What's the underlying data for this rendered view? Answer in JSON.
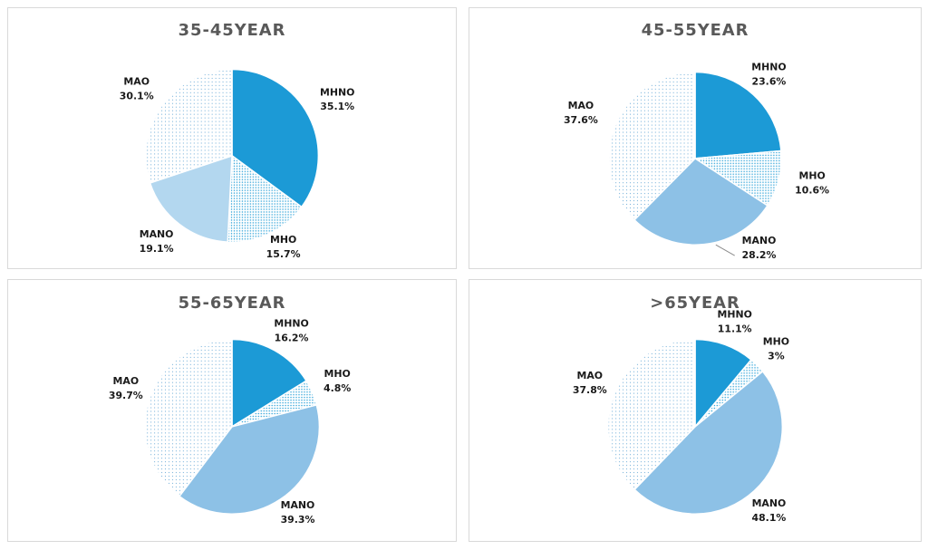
{
  "colors": {
    "MHNO": "#1c9ad6",
    "MHO_dot": "#27a0d8",
    "MANO_light": "#b3d7ef",
    "MANO": "#8dc1e6",
    "MAO_dot": "#7bb4dc",
    "panel_border": "#d9d9d9",
    "title": "#595959"
  },
  "chart_data": [
    {
      "type": "pie",
      "title": "35-45YEAR",
      "slices": [
        {
          "label": "MHNO",
          "value": 35.1,
          "display": "35.1%"
        },
        {
          "label": "MHO",
          "value": 15.7,
          "display": "15.7%"
        },
        {
          "label": "MANO",
          "value": 19.1,
          "display": "19.1%"
        },
        {
          "label": "MAO",
          "value": 30.1,
          "display": "30.1%"
        }
      ]
    },
    {
      "type": "pie",
      "title": "45-55YEAR",
      "slices": [
        {
          "label": "MHNO",
          "value": 23.6,
          "display": "23.6%"
        },
        {
          "label": "MHO",
          "value": 10.6,
          "display": "10.6%"
        },
        {
          "label": "MANO",
          "value": 28.2,
          "display": "28.2%"
        },
        {
          "label": "MAO",
          "value": 37.6,
          "display": "37.6%"
        }
      ]
    },
    {
      "type": "pie",
      "title": "55-65YEAR",
      "slices": [
        {
          "label": "MHNO",
          "value": 16.2,
          "display": "16.2%"
        },
        {
          "label": "MHO",
          "value": 4.8,
          "display": "4.8%"
        },
        {
          "label": "MANO",
          "value": 39.3,
          "display": "39.3%"
        },
        {
          "label": "MAO",
          "value": 39.7,
          "display": "39.7%"
        }
      ]
    },
    {
      "type": "pie",
      "title": ">65YEAR",
      "slices": [
        {
          "label": "MHNO",
          "value": 11.1,
          "display": "11.1%"
        },
        {
          "label": "MHO",
          "value": 3,
          "display": "3%"
        },
        {
          "label": "MANO",
          "value": 48.1,
          "display": "48.1%"
        },
        {
          "label": "MAO",
          "value": 37.8,
          "display": "37.8%"
        }
      ]
    }
  ]
}
